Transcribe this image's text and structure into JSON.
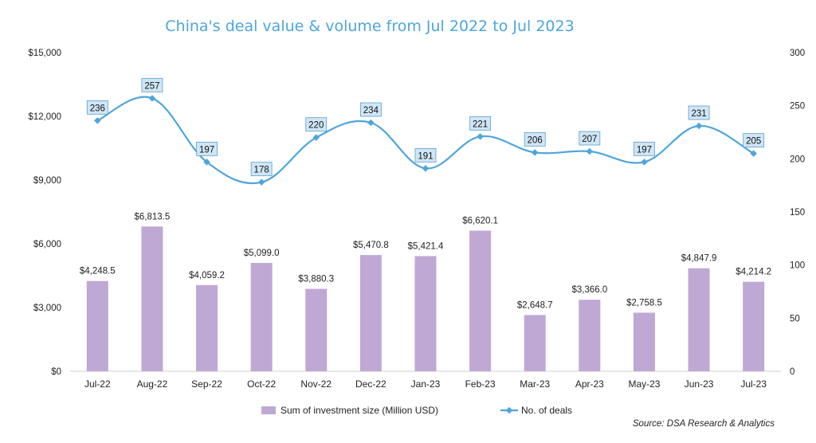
{
  "chart_data": {
    "type": "bar+line",
    "title": "China's deal value & volume from Jul 2022 to Jul 2023",
    "categories": [
      "Jul-22",
      "Aug-22",
      "Sep-22",
      "Oct-22",
      "Nov-22",
      "Dec-22",
      "Jan-23",
      "Feb-23",
      "Mar-23",
      "Apr-23",
      "May-23",
      "Jun-23",
      "Jul-23"
    ],
    "series": [
      {
        "name": "Sum of investment size (Million USD)",
        "type": "bar",
        "axis": "left",
        "values": [
          4248.5,
          6813.5,
          4059.2,
          5099.0,
          3880.3,
          5470.8,
          5421.4,
          6620.1,
          2648.7,
          3366.0,
          2758.5,
          4847.9,
          4214.2
        ],
        "labels": [
          "$4,248.5",
          "$6,813.5",
          "$4,059.2",
          "$5,099.0",
          "$3,880.3",
          "$5,470.8",
          "$5,421.4",
          "$6,620.1",
          "$2,648.7",
          "$3,366.0",
          "$2,758.5",
          "$4,847.9",
          "$4,214.2"
        ],
        "color": "#bfa8d3"
      },
      {
        "name": "No. of deals",
        "type": "line",
        "axis": "right",
        "values": [
          236,
          257,
          197,
          178,
          220,
          234,
          191,
          221,
          206,
          207,
          197,
          231,
          205
        ],
        "labels": [
          "236",
          "257",
          "197",
          "178",
          "220",
          "234",
          "191",
          "221",
          "206",
          "207",
          "197",
          "231",
          "205"
        ],
        "color": "#4ea5dc"
      }
    ],
    "y_left": {
      "min": 0,
      "max": 15000,
      "ticks": [
        0,
        3000,
        6000,
        9000,
        12000,
        15000
      ],
      "tick_labels": [
        "$0",
        "$3,000",
        "$6,000",
        "$9,000",
        "$12,000",
        "$15,000"
      ]
    },
    "y_right": {
      "min": 0,
      "max": 300,
      "ticks": [
        0,
        50,
        100,
        150,
        200,
        250,
        300
      ],
      "tick_labels": [
        "0",
        "50",
        "100",
        "150",
        "200",
        "250",
        "300"
      ]
    },
    "grid": false,
    "legend_position": "bottom-center",
    "source": "Source: DSA Research & Analytics"
  }
}
